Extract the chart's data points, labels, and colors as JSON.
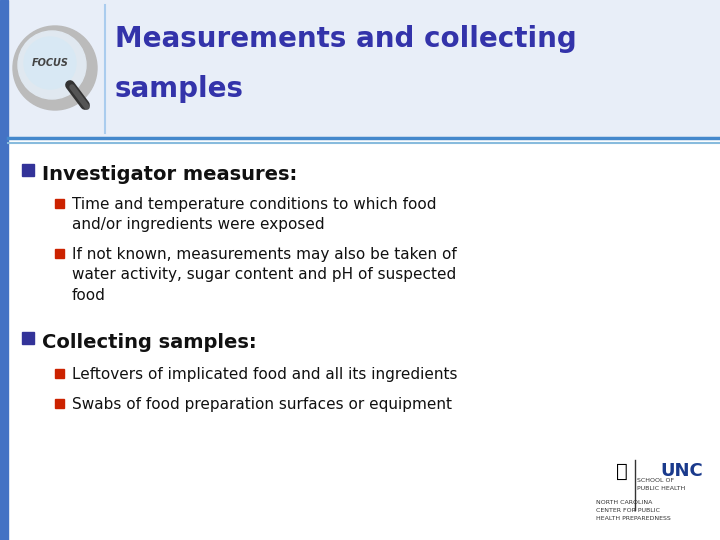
{
  "title_line1": "Measurements and collecting",
  "title_line2": "samples",
  "title_color": "#3333AA",
  "bg_color": "#FFFFFF",
  "header_bg": "#E8EEF8",
  "divider_color_top": "#4488CC",
  "divider_color_bot": "#88BBDD",
  "left_bar_color": "#4472C4",
  "bullet1_color": "#333399",
  "subbullet_color": "#CC2200",
  "bullet1_text": "Investigator measures:",
  "bullet2_text": "Collecting samples:",
  "sub1_line1": "Time and temperature conditions to which food",
  "sub1_line2": "and/or ingredients were exposed",
  "sub2_line1": "If not known, measurements may also be taken of",
  "sub2_line2": "water activity, sugar content and pH of suspected",
  "sub2_line3": "food",
  "sub3_text": "Leftovers of implicated food and all its ingredients",
  "sub4_text": "Swabs of food preparation surfaces or equipment",
  "unc_text": "UNC",
  "unc_sub1": "SCHOOL OF",
  "unc_sub2": "PUBLIC HEALTH",
  "unc_sub3": "NORTH CAROLINA",
  "unc_sub4": "CENTER FOR PUBLIC",
  "unc_sub5": "HEALTH PREPAREDNESS"
}
